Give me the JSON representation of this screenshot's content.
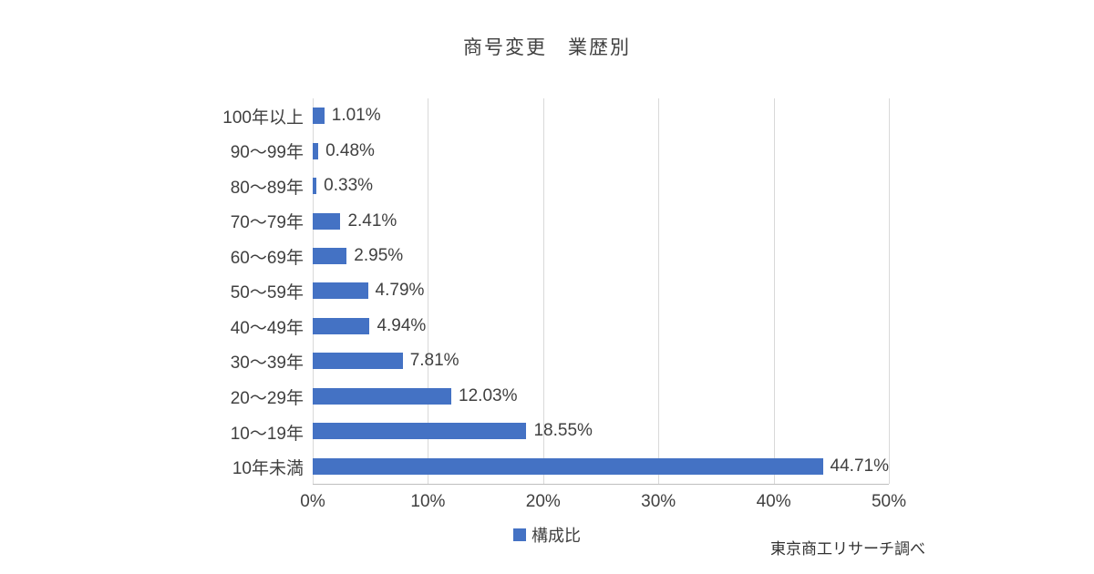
{
  "chart_data": {
    "type": "bar",
    "orientation": "horizontal",
    "title": "商号変更　業歴別",
    "categories": [
      "100年以上",
      "90～99年",
      "80～89年",
      "70～79年",
      "60～69年",
      "50～59年",
      "40～49年",
      "30～39年",
      "20～29年",
      "10～19年",
      "10年未満"
    ],
    "values": [
      1.01,
      0.48,
      0.33,
      2.41,
      2.95,
      4.79,
      4.94,
      7.81,
      12.03,
      18.55,
      44.71
    ],
    "value_labels": [
      "1.01%",
      "0.48%",
      "0.33%",
      "2.41%",
      "2.95%",
      "4.79%",
      "4.94%",
      "7.81%",
      "12.03%",
      "18.55%",
      "44.71%"
    ],
    "xlim": [
      0,
      50
    ],
    "ticks": [
      0,
      10,
      20,
      30,
      40,
      50
    ],
    "tick_labels": [
      "0%",
      "10%",
      "20%",
      "30%",
      "40%",
      "50%"
    ],
    "grid": true,
    "legend": "構成比",
    "legend_position": "bottom",
    "bar_color": "#4472C4",
    "gridline_color": "#d9d9d9",
    "source_note": "東京商工リサーチ調べ"
  }
}
